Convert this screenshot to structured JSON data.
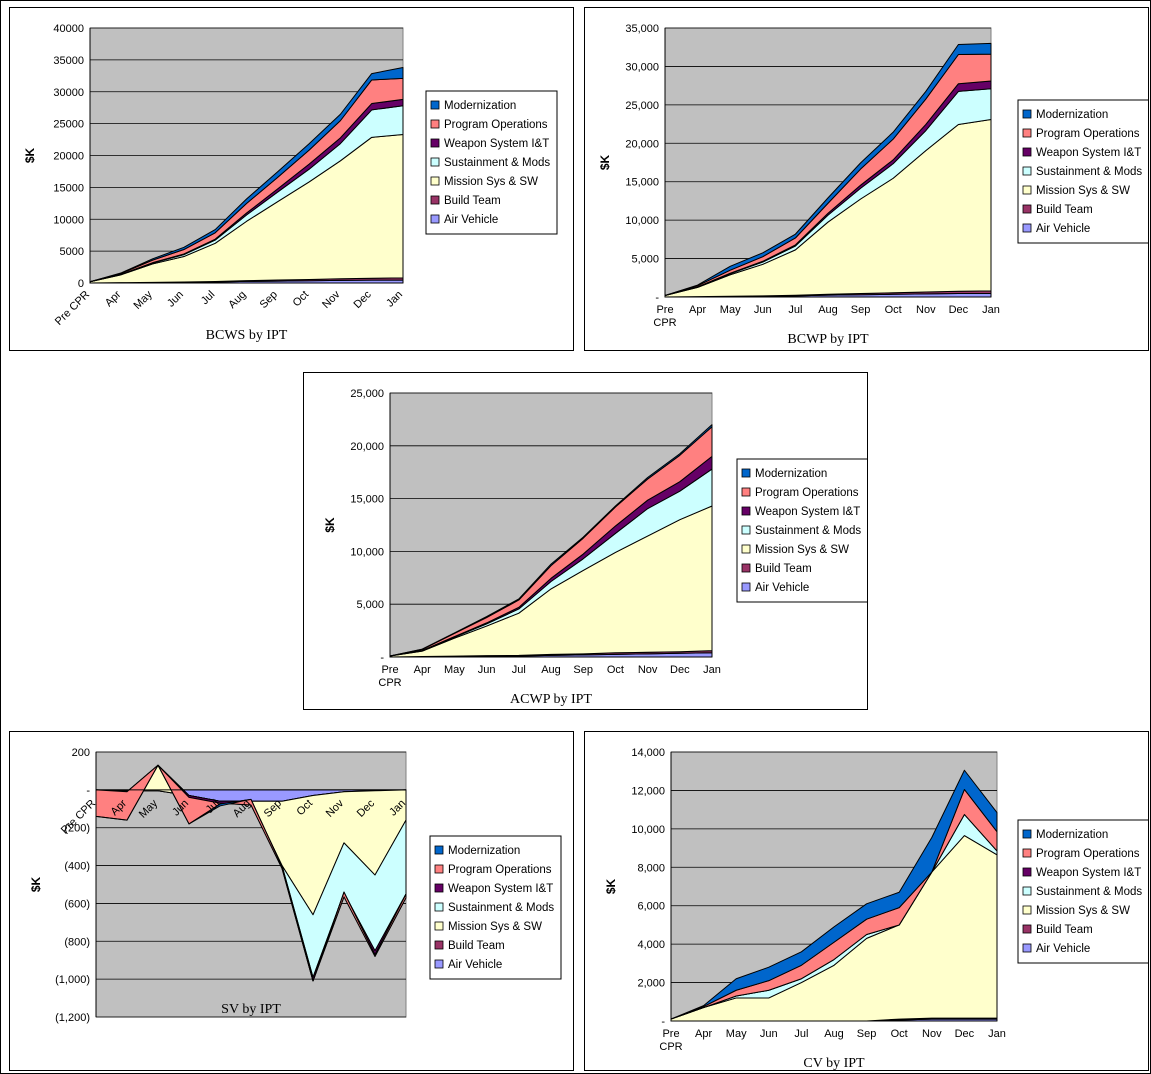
{
  "legend": [
    "Modernization",
    "Program Operations",
    "Weapon System I&T",
    "Sustainment & Mods",
    "Mission Sys & SW",
    "Build Team",
    "Air Vehicle"
  ],
  "colors": {
    "Air Vehicle": "#9999FF",
    "Build Team": "#993366",
    "Mission Sys & SW": "#FFFFCC",
    "Sustainment & Mods": "#CCFFFF",
    "Weapon System I&T": "#660066",
    "Program Operations": "#FF8080",
    "Modernization": "#0066CC",
    "plot_bg": "#C0C0C0"
  },
  "chart_data": [
    {
      "id": "bcws",
      "type": "area",
      "stacked": true,
      "title": "BCWS by IPT",
      "ylabel": "$K",
      "categories": [
        "Pre CPR",
        "Apr",
        "May",
        "Jun",
        "Jul",
        "Aug",
        "Sep",
        "Oct",
        "Nov",
        "Dec",
        "Jan"
      ],
      "ylim": [
        0,
        40000
      ],
      "yticks": [
        "0",
        "5000",
        "10000",
        "15000",
        "20000",
        "25000",
        "30000",
        "35000",
        "40000"
      ],
      "series": [
        {
          "name": "Air Vehicle",
          "values": [
            0,
            30,
            60,
            100,
            150,
            250,
            300,
            350,
            420,
            450,
            450
          ]
        },
        {
          "name": "Build Team",
          "values": [
            0,
            20,
            30,
            50,
            80,
            120,
            180,
            200,
            250,
            300,
            350
          ]
        },
        {
          "name": "Mission Sys & SW",
          "values": [
            200,
            1250,
            2900,
            4000,
            6000,
            9300,
            12300,
            15300,
            18500,
            22100,
            22500
          ]
        },
        {
          "name": "Sustainment & Mods",
          "values": [
            0,
            50,
            150,
            300,
            500,
            1000,
            1500,
            2000,
            2700,
            4300,
            4500
          ]
        },
        {
          "name": "Weapon System I&T",
          "values": [
            0,
            20,
            50,
            100,
            150,
            300,
            500,
            800,
            900,
            1000,
            1000
          ]
        },
        {
          "name": "Program Operations",
          "values": [
            0,
            150,
            400,
            700,
            1000,
            1500,
            1800,
            2200,
            2700,
            3700,
            3300
          ]
        },
        {
          "name": "Modernization",
          "values": [
            0,
            80,
            200,
            350,
            500,
            700,
            900,
            1000,
            1000,
            1000,
            1700
          ]
        }
      ]
    },
    {
      "id": "bcwp",
      "type": "area",
      "stacked": true,
      "title": "BCWP by IPT",
      "ylabel": "$K",
      "categories": [
        "Pre CPR",
        "Apr",
        "May",
        "Jun",
        "Jul",
        "Aug",
        "Sep",
        "Oct",
        "Nov",
        "Dec",
        "Jan"
      ],
      "ylim": [
        0,
        35000
      ],
      "yticks": [
        "-",
        "5,000",
        "10,000",
        "15,000",
        "20,000",
        "25,000",
        "30,000",
        "35,000"
      ],
      "series": [
        {
          "name": "Air Vehicle",
          "values": [
            0,
            30,
            60,
            100,
            150,
            250,
            300,
            350,
            400,
            450,
            450
          ]
        },
        {
          "name": "Build Team",
          "values": [
            0,
            20,
            30,
            50,
            80,
            100,
            150,
            200,
            250,
            300,
            350
          ]
        },
        {
          "name": "Mission Sys & SW",
          "values": [
            200,
            1200,
            2800,
            4100,
            5900,
            9400,
            12300,
            14900,
            18400,
            21700,
            22300
          ]
        },
        {
          "name": "Sustainment & Mods",
          "values": [
            0,
            50,
            150,
            300,
            500,
            900,
            1400,
            1900,
            2600,
            4300,
            4000
          ]
        },
        {
          "name": "Weapon System I&T",
          "values": [
            0,
            20,
            50,
            100,
            150,
            250,
            400,
            500,
            800,
            1000,
            1000
          ]
        },
        {
          "name": "Program Operations",
          "values": [
            0,
            150,
            400,
            600,
            900,
            1300,
            2100,
            2700,
            3300,
            3800,
            3500
          ]
        },
        {
          "name": "Modernization",
          "values": [
            0,
            80,
            500,
            500,
            500,
            700,
            800,
            900,
            1000,
            1300,
            1400
          ]
        }
      ]
    },
    {
      "id": "acwp",
      "type": "area",
      "stacked": true,
      "title": "ACWP by IPT",
      "ylabel": "$K",
      "categories": [
        "Pre CPR",
        "Apr",
        "May",
        "Jun",
        "Jul",
        "Aug",
        "Sep",
        "Oct",
        "Nov",
        "Dec",
        "Jan"
      ],
      "ylim": [
        0,
        25000
      ],
      "yticks": [
        "-",
        "5,000",
        "10,000",
        "15,000",
        "20,000",
        "25,000"
      ],
      "series": [
        {
          "name": "Air Vehicle",
          "values": [
            0,
            30,
            50,
            80,
            100,
            150,
            200,
            250,
            300,
            350,
            400
          ]
        },
        {
          "name": "Build Team",
          "values": [
            0,
            20,
            30,
            50,
            50,
            100,
            100,
            150,
            150,
            150,
            200
          ]
        },
        {
          "name": "Mission Sys & SW",
          "values": [
            100,
            500,
            1700,
            2800,
            4000,
            6200,
            7900,
            9500,
            11000,
            12500,
            13700
          ]
        },
        {
          "name": "Sustainment & Mods",
          "values": [
            0,
            50,
            100,
            200,
            400,
            700,
            1100,
            1800,
            2600,
            2700,
            3500
          ]
        },
        {
          "name": "Weapon System I&T",
          "values": [
            0,
            20,
            50,
            100,
            150,
            300,
            450,
            700,
            800,
            900,
            1200
          ]
        },
        {
          "name": "Program Operations",
          "values": [
            0,
            100,
            300,
            500,
            700,
            1200,
            1500,
            1800,
            2000,
            2500,
            2800
          ]
        },
        {
          "name": "Modernization",
          "values": [
            0,
            30,
            50,
            100,
            100,
            150,
            100,
            100,
            150,
            150,
            200
          ]
        }
      ]
    },
    {
      "id": "sv",
      "type": "area",
      "stacked": true,
      "title": "SV by IPT",
      "ylabel": "$K",
      "categories": [
        "Pre CPR",
        "Apr",
        "May",
        "Jun",
        "Jul",
        "Aug",
        "Sep",
        "Oct",
        "Nov",
        "Dec",
        "Jan"
      ],
      "ylim": [
        -1200,
        200
      ],
      "yticks": [
        "(1,200)",
        "(1,000)",
        "(800)",
        "(600)",
        "(400)",
        "(200)",
        "-",
        "200"
      ],
      "series": [
        {
          "name": "Air Vehicle",
          "values": [
            0,
            -5,
            -5,
            -30,
            -60,
            -60,
            -60,
            -30,
            -10,
            -5,
            0
          ]
        },
        {
          "name": "Build Team",
          "values": [
            0,
            0,
            0,
            0,
            0,
            0,
            0,
            0,
            0,
            0,
            0
          ]
        },
        {
          "name": "Mission Sys & SW",
          "values": [
            0,
            -5,
            135,
            0,
            0,
            0,
            -340,
            -630,
            -270,
            -445,
            -160
          ]
        },
        {
          "name": "Sustainment & Mods",
          "values": [
            0,
            0,
            0,
            0,
            0,
            0,
            0,
            -330,
            -265,
            -400,
            -390
          ]
        },
        {
          "name": "Weapon System I&T",
          "values": [
            0,
            0,
            0,
            -10,
            -10,
            -20,
            -15,
            -20,
            -20,
            -30,
            -20
          ]
        },
        {
          "name": "Program Operations",
          "values": [
            -140,
            -150,
            0,
            -140,
            -5,
            30,
            10,
            0,
            25,
            10,
            20
          ]
        },
        {
          "name": "Modernization",
          "values": [
            0,
            0,
            0,
            0,
            -10,
            0,
            0,
            0,
            0,
            0,
            0
          ]
        }
      ]
    },
    {
      "id": "cv",
      "type": "area",
      "stacked": true,
      "title": "CV by IPT",
      "ylabel": "$K",
      "categories": [
        "Pre CPR",
        "Apr",
        "May",
        "Jun",
        "Jul",
        "Aug",
        "Sep",
        "Oct",
        "Nov",
        "Dec",
        "Jan"
      ],
      "ylim": [
        0,
        14000
      ],
      "yticks": [
        "-",
        "2,000",
        "4,000",
        "6,000",
        "8,000",
        "10,000",
        "12,000",
        "14,000"
      ],
      "series": [
        {
          "name": "Air Vehicle",
          "values": [
            0,
            0,
            0,
            0,
            0,
            0,
            0,
            50,
            100,
            100,
            100
          ]
        },
        {
          "name": "Build Team",
          "values": [
            0,
            0,
            0,
            0,
            0,
            0,
            0,
            50,
            50,
            50,
            50
          ]
        },
        {
          "name": "Mission Sys & SW",
          "values": [
            100,
            700,
            1200,
            1200,
            2000,
            2900,
            4300,
            4900,
            7600,
            9500,
            8500
          ]
        },
        {
          "name": "Sustainment & Mods",
          "values": [
            0,
            0,
            100,
            400,
            200,
            300,
            200,
            0,
            0,
            1100,
            200
          ]
        },
        {
          "name": "Weapon System I&T",
          "values": [
            0,
            0,
            0,
            0,
            0,
            0,
            0,
            0,
            0,
            0,
            0
          ]
        },
        {
          "name": "Program Operations",
          "values": [
            0,
            50,
            300,
            500,
            700,
            900,
            800,
            900,
            0,
            1300,
            1000
          ]
        },
        {
          "name": "Modernization",
          "values": [
            0,
            50,
            600,
            700,
            700,
            800,
            800,
            800,
            1800,
            1000,
            1000
          ]
        }
      ]
    }
  ]
}
